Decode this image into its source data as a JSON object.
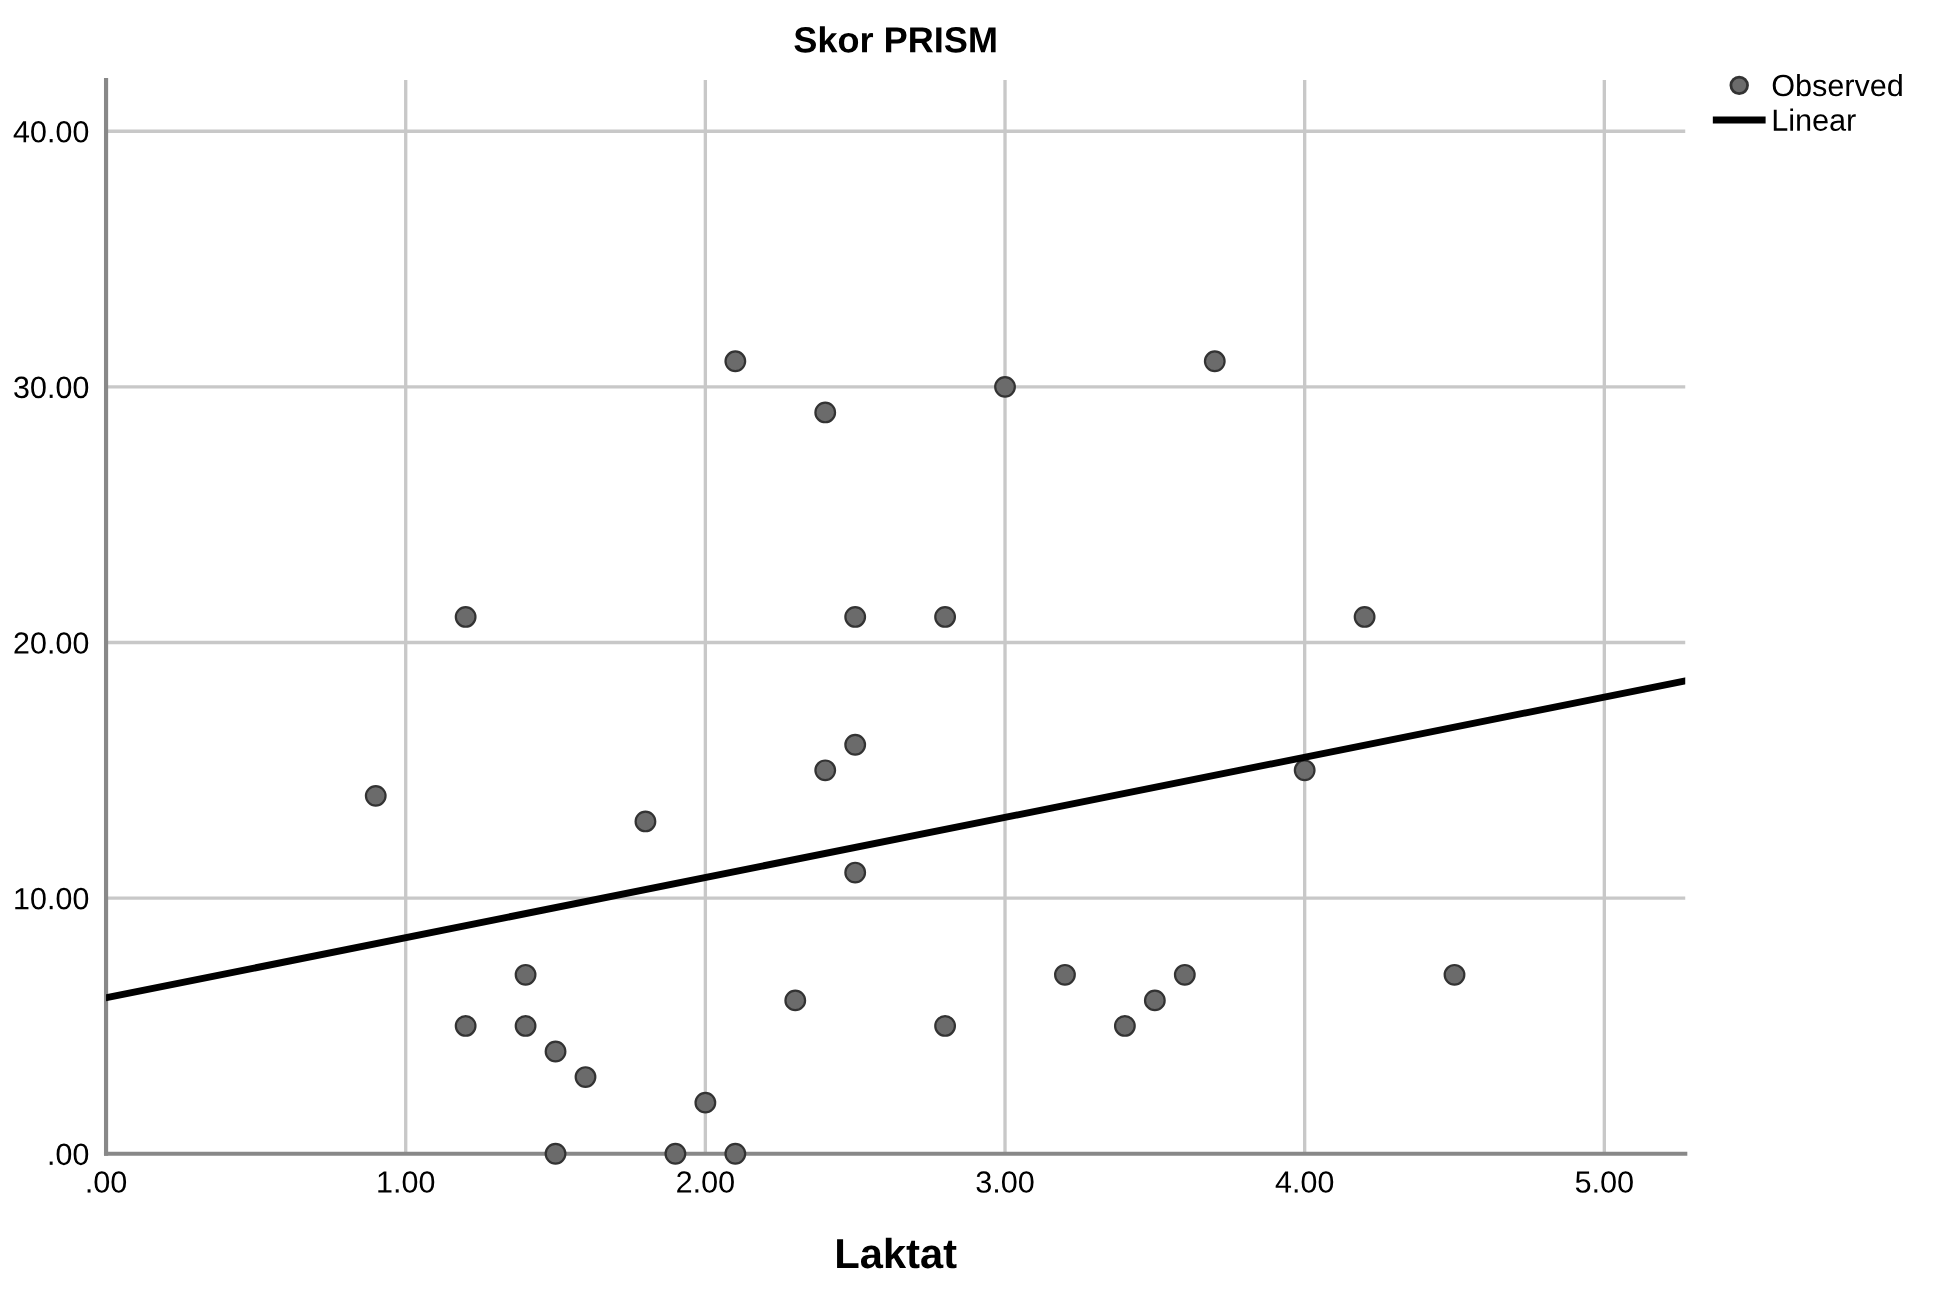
{
  "chart_data": {
    "type": "scatter",
    "title": "Skor PRISM",
    "xlabel": "Laktat",
    "xlim": [
      0,
      5.27
    ],
    "ylim": [
      0,
      42
    ],
    "xticks": [
      {
        "value": 0,
        "label": ".00"
      },
      {
        "value": 1,
        "label": "1.00"
      },
      {
        "value": 2,
        "label": "2.00"
      },
      {
        "value": 3,
        "label": "3.00"
      },
      {
        "value": 4,
        "label": "4.00"
      },
      {
        "value": 5,
        "label": "5.00"
      }
    ],
    "yticks": [
      {
        "value": 0,
        "label": ".00"
      },
      {
        "value": 10,
        "label": "10.00"
      },
      {
        "value": 20,
        "label": "20.00"
      },
      {
        "value": 30,
        "label": "30.00"
      },
      {
        "value": 40,
        "label": "40.00"
      }
    ],
    "grid": true,
    "legend": "top right",
    "series": [
      {
        "name": "Observed",
        "marker": "circle",
        "color": "#6b6b6b",
        "x": [
          0.9,
          1.2,
          1.2,
          1.4,
          1.4,
          1.5,
          1.5,
          1.6,
          1.8,
          1.9,
          2.0,
          2.1,
          2.1,
          2.3,
          2.4,
          2.4,
          2.5,
          2.5,
          2.5,
          2.8,
          2.8,
          3.0,
          3.2,
          3.4,
          3.5,
          3.6,
          3.7,
          4.0,
          4.2,
          4.5
        ],
        "values": [
          14,
          21,
          5,
          7,
          5,
          4,
          0,
          3,
          13,
          0,
          2,
          31,
          0,
          6,
          29,
          15,
          21,
          16,
          11,
          21,
          5,
          30,
          7,
          5,
          6,
          7,
          31,
          15,
          21,
          7
        ]
      },
      {
        "name": "Linear",
        "type": "line",
        "color": "#000000",
        "line_style": "solid",
        "x": [
          0,
          5.27
        ],
        "values": [
          6.1,
          18.5
        ]
      }
    ]
  }
}
